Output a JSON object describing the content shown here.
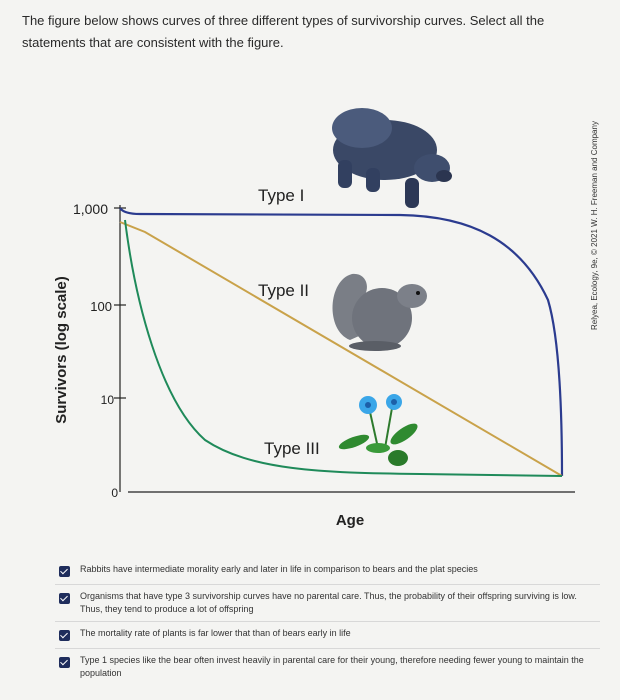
{
  "question": {
    "text": "The figure below shows curves of three different types of survivorship curves. Select all the statements that are consistent with the figure."
  },
  "credit": "Relyea, Ecology, 9e, © 2021 W. H. Freeman and Company",
  "chart_data": {
    "type": "line",
    "ylabel": "Survivors (log scale)",
    "xlabel": "Age",
    "y_scale": "log",
    "y_ticks": [
      "1,000",
      "100",
      "10",
      "0"
    ],
    "x_ticks": [],
    "series": [
      {
        "name": "Type I",
        "color": "#2b3b8f",
        "description": "survivors stay near 1,000 for most of life, then drop steeply at old age"
      },
      {
        "name": "Type II",
        "color": "#c9a24a",
        "description": "straight decline on log scale: constant mortality"
      },
      {
        "name": "Type III",
        "color": "#1f8a5a",
        "description": "steep early drop to near 10, then flat"
      }
    ],
    "colors": {
      "axis": "#222222"
    }
  },
  "illustrations": [
    "bear-icon",
    "squirrel-icon",
    "flower-icon"
  ],
  "options": [
    {
      "label": "Rabbits have intermediate morality early and later in life in comparison to bears and the plat species",
      "checked": true
    },
    {
      "label": "Organisms that have type 3 survivorship curves have no parental care. Thus, the probability of their offspring surviving is low. Thus, they tend to produce a lot of offspring",
      "checked": true
    },
    {
      "label": "The mortality rate of plants is far lower that than of bears early in life",
      "checked": true
    },
    {
      "label": "Type 1 species like the bear often invest heavily in parental care for their young, therefore needing fewer young to maintain the population",
      "checked": true
    }
  ]
}
